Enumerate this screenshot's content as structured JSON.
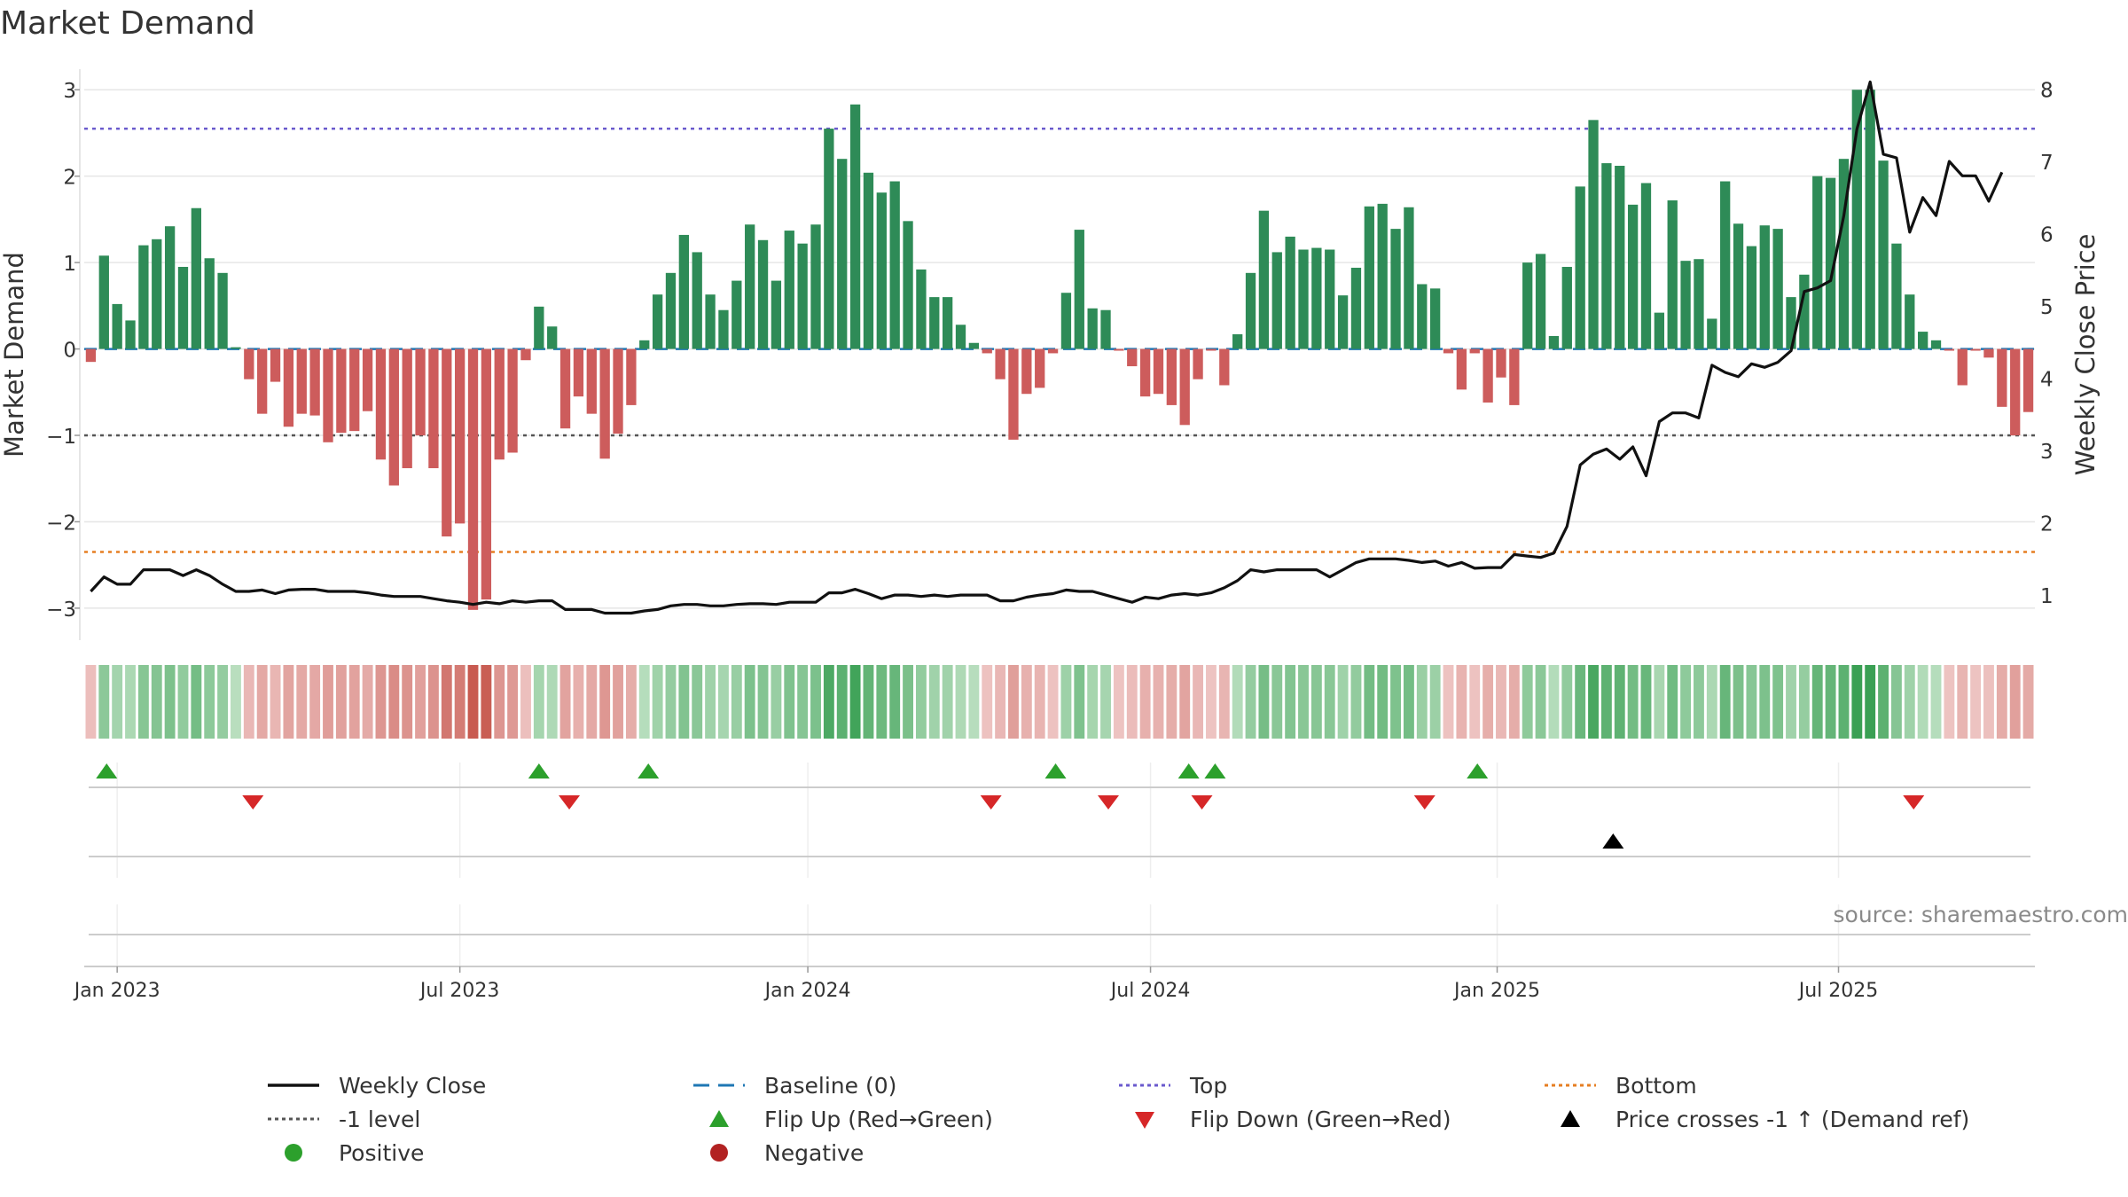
{
  "title": "Market Demand",
  "source": "source: sharemaestro.com",
  "legend": [
    {
      "key": "weekly_close",
      "label": "Weekly Close",
      "color": "#111111"
    },
    {
      "key": "baseline",
      "label": "Baseline (0)",
      "color": "#1f77b4"
    },
    {
      "key": "top",
      "label": "Top",
      "color": "#6a5acd"
    },
    {
      "key": "bottom",
      "label": "Bottom",
      "color": "#e67e22"
    },
    {
      "key": "minus1",
      "label": "-1 level",
      "color": "#555555"
    },
    {
      "key": "flip_up",
      "label": "Flip Up (Red→Green)",
      "color": "#2ca02c"
    },
    {
      "key": "flip_down",
      "label": "Flip Down (Green→Red)",
      "color": "#d62728"
    },
    {
      "key": "price_cross",
      "label": "Price crosses -1 ↑ (Demand ref)",
      "color": "#000000"
    },
    {
      "key": "positive",
      "label": "Positive",
      "color": "#2ca02c"
    },
    {
      "key": "negative",
      "label": "Negative",
      "color": "#b22222"
    }
  ],
  "chart_data": {
    "type": "bar",
    "title": "Market Demand",
    "ylabel": "Market Demand",
    "y2label": "Weekly Close Price",
    "ylim": [
      -3.35,
      3.3
    ],
    "y2lim": [
      0.4,
      8.35
    ],
    "yticks": [
      3,
      2,
      1,
      0,
      -1,
      -2,
      -3
    ],
    "ytick_labels": [
      "3",
      "2",
      "1",
      "0",
      "−1",
      "−2",
      "−3"
    ],
    "y2ticks": [
      8,
      7,
      6,
      5,
      4,
      3,
      2,
      1
    ],
    "y2tick_labels": [
      "8",
      "7",
      "6",
      "5",
      "4",
      "3",
      "2",
      "1"
    ],
    "xticks": [
      {
        "label": "Jan 2023",
        "week": 2
      },
      {
        "label": "Jul 2023",
        "week": 28
      },
      {
        "label": "Jan 2024",
        "week": 54.4
      },
      {
        "label": "Jul 2024",
        "week": 80.4
      },
      {
        "label": "Jan 2025",
        "week": 106.7
      },
      {
        "label": "Jul 2025",
        "week": 132.6
      }
    ],
    "reference_lines": {
      "baseline": 0,
      "top": 2.55,
      "minus1": -1,
      "bottom": -2.35
    },
    "demand": [
      -0.15,
      1.08,
      0.52,
      0.33,
      1.2,
      1.27,
      1.42,
      0.95,
      1.63,
      1.05,
      0.88,
      0.02,
      -0.35,
      -0.75,
      -0.38,
      -0.9,
      -0.75,
      -0.77,
      -1.08,
      -0.97,
      -0.95,
      -0.72,
      -1.28,
      -1.58,
      -1.38,
      -1.0,
      -1.38,
      -2.17,
      -2.02,
      -3.02,
      -2.9,
      -1.28,
      -1.2,
      -0.13,
      0.49,
      0.26,
      -0.92,
      -0.55,
      -0.75,
      -1.27,
      -0.98,
      -0.65,
      0.1,
      0.63,
      0.88,
      1.32,
      1.12,
      0.63,
      0.45,
      0.79,
      1.44,
      1.26,
      0.79,
      1.37,
      1.22,
      1.44,
      2.55,
      2.2,
      2.83,
      2.04,
      1.81,
      1.94,
      1.48,
      0.92,
      0.6,
      0.6,
      0.28,
      0.07,
      -0.05,
      -0.35,
      -1.05,
      -0.52,
      -0.45,
      -0.05,
      0.65,
      1.38,
      0.47,
      0.45,
      -0.02,
      -0.2,
      -0.55,
      -0.52,
      -0.65,
      -0.88,
      -0.35,
      -0.02,
      -0.42,
      0.17,
      0.88,
      1.6,
      1.12,
      1.3,
      1.15,
      1.17,
      1.15,
      0.62,
      0.94,
      1.65,
      1.68,
      1.39,
      1.64,
      0.75,
      0.7,
      -0.05,
      -0.47,
      -0.05,
      -0.62,
      -0.33,
      -0.65,
      1.0,
      1.1,
      0.15,
      0.95,
      1.88,
      2.65,
      2.15,
      2.12,
      1.67,
      1.92,
      0.42,
      1.72,
      1.02,
      1.04,
      0.35,
      1.94,
      1.45,
      1.19,
      1.43,
      1.39,
      0.6,
      0.86,
      2.0,
      1.98,
      2.2,
      3.0,
      3.0,
      2.18,
      1.22,
      0.63,
      0.2,
      0.1,
      -0.02,
      -0.42,
      -0.02,
      -0.1,
      -0.67,
      -1.0,
      -0.73
    ],
    "close": [
      1.05,
      1.25,
      1.15,
      1.15,
      1.35,
      1.35,
      1.35,
      1.27,
      1.35,
      1.27,
      1.15,
      1.05,
      1.05,
      1.07,
      1.02,
      1.07,
      1.08,
      1.08,
      1.05,
      1.05,
      1.05,
      1.03,
      1.0,
      0.98,
      0.98,
      0.98,
      0.95,
      0.92,
      0.9,
      0.87,
      0.9,
      0.88,
      0.92,
      0.9,
      0.92,
      0.92,
      0.8,
      0.8,
      0.8,
      0.75,
      0.75,
      0.75,
      0.78,
      0.8,
      0.85,
      0.87,
      0.87,
      0.85,
      0.85,
      0.87,
      0.88,
      0.88,
      0.87,
      0.9,
      0.9,
      0.9,
      1.03,
      1.03,
      1.08,
      1.02,
      0.95,
      1.0,
      1.0,
      0.98,
      1.0,
      0.98,
      1.0,
      1.0,
      1.0,
      0.92,
      0.92,
      0.97,
      1.0,
      1.02,
      1.07,
      1.05,
      1.05,
      1.0,
      0.95,
      0.9,
      0.97,
      0.95,
      1.0,
      1.02,
      1.0,
      1.03,
      1.1,
      1.2,
      1.35,
      1.32,
      1.35,
      1.35,
      1.35,
      1.35,
      1.25,
      1.35,
      1.45,
      1.5,
      1.5,
      1.5,
      1.48,
      1.45,
      1.47,
      1.4,
      1.45,
      1.37,
      1.38,
      1.38,
      1.56,
      1.54,
      1.52,
      1.58,
      1.95,
      2.8,
      2.95,
      3.02,
      2.88,
      3.05,
      2.65,
      3.4,
      3.52,
      3.52,
      3.45,
      4.18,
      4.08,
      4.02,
      4.2,
      4.15,
      4.22,
      4.38,
      5.2,
      5.25,
      5.35,
      6.25,
      7.45,
      8.1,
      7.1,
      7.05,
      6.02,
      6.5,
      6.25,
      7.0,
      6.8,
      6.8,
      6.45,
      6.85
    ],
    "flip_up_weeks": [
      1.2,
      34,
      42.3,
      73.2,
      83.3,
      85.3,
      105.2
    ],
    "flip_down_weeks": [
      12.3,
      36.3,
      68.3,
      77.2,
      84.3,
      101.2,
      138.3
    ],
    "price_cross_weeks": [
      115.5
    ]
  }
}
